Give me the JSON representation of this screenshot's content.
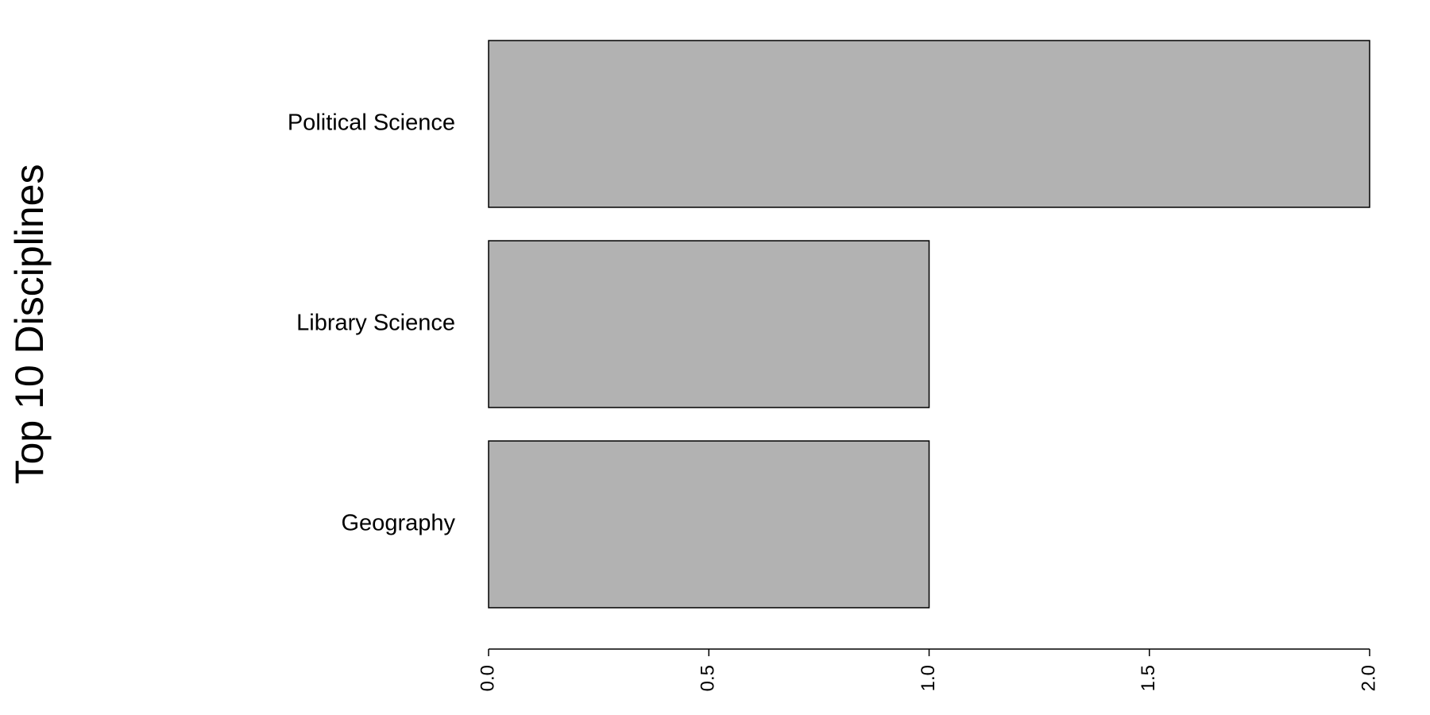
{
  "chart_data": {
    "type": "bar",
    "orientation": "horizontal",
    "categories": [
      "Geography",
      "Library Science",
      "Political Science"
    ],
    "values": [
      1,
      1,
      2
    ],
    "ylabel": "Top 10 Disciplines",
    "xlabel": "",
    "xlim": [
      0,
      2
    ],
    "x_ticks": [
      "0.0",
      "0.5",
      "1.0",
      "1.5",
      "2.0"
    ],
    "bar_color": "#b2b2b2",
    "grid": false,
    "legend": "none"
  }
}
